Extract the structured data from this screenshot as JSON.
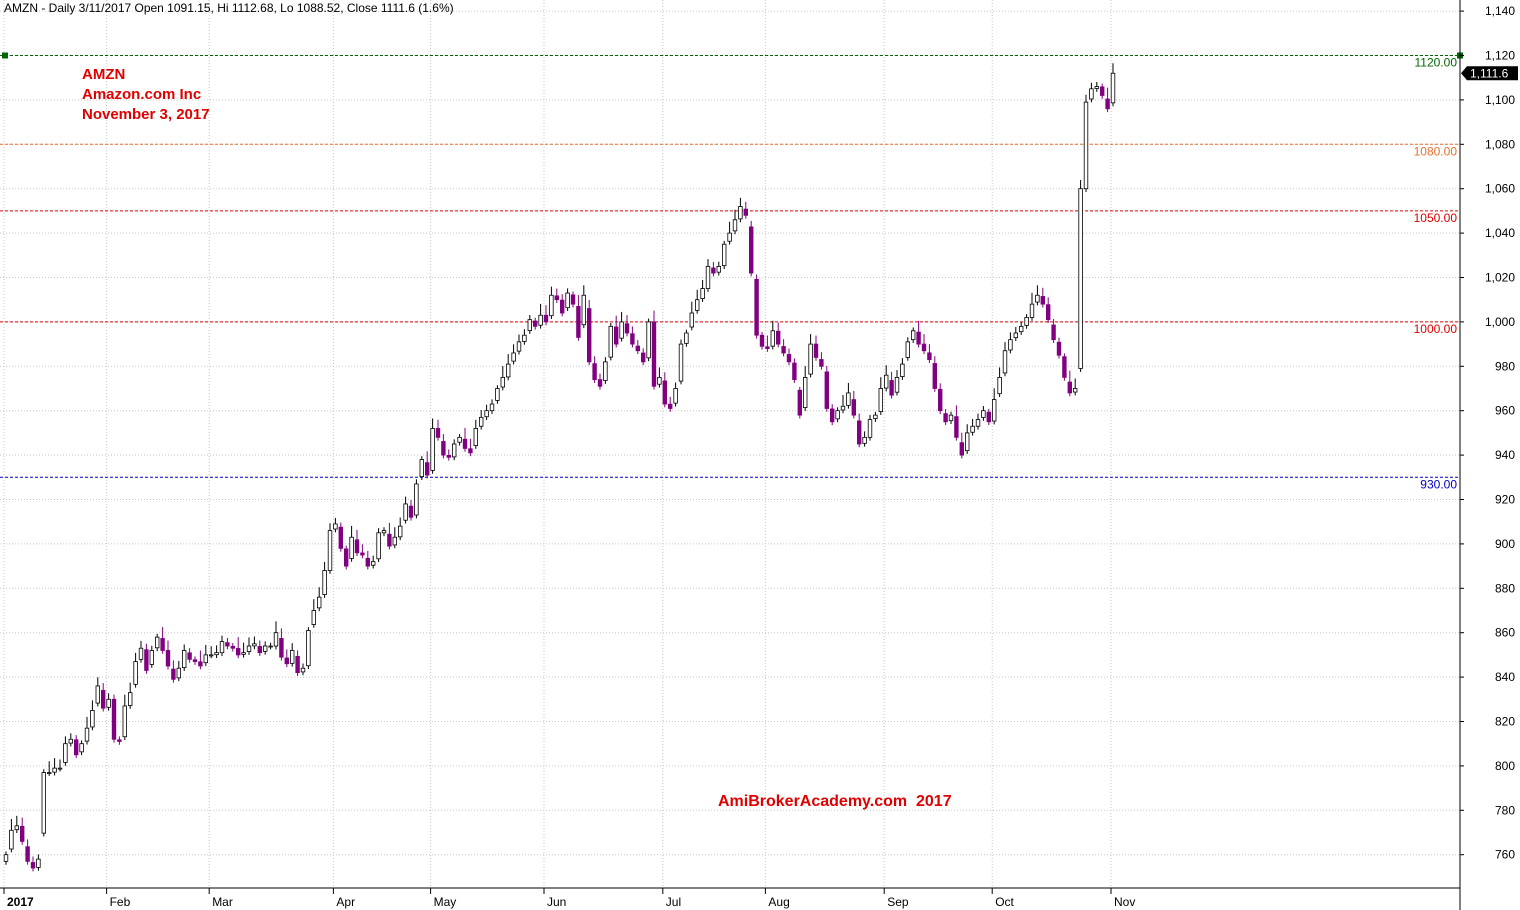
{
  "header": {
    "text": "AMZN - Daily 3/11/2017 Open 1091.15, Hi 1112.68, Lo 1088.52, Close 1111.6 (1.6%)"
  },
  "annotations": {
    "ticker": "AMZN",
    "company": "Amazon.com Inc",
    "date": "November 3, 2017",
    "watermark": "AmiBrokerAcademy.com  2017"
  },
  "colors": {
    "up_candle": "#ffffff",
    "down_candle": "#800080",
    "level_1120": "#006600",
    "level_1080": "#e87030",
    "level_1050": "#e00000",
    "level_1000": "#e00000",
    "level_930": "#0000cc",
    "grid": "#c8c8c8",
    "annotation_text": "#e00000"
  },
  "chart_data": {
    "type": "candlestick",
    "title": "AMZN - Daily 3/11/2017 Open 1091.15, Hi 1112.68, Lo 1088.52, Close 1111.6 (1.6%)",
    "xlabel": "",
    "ylabel": "",
    "grid": true,
    "ylim": [
      745,
      1145
    ],
    "y_ticks": [
      760,
      780,
      800,
      820,
      840,
      860,
      880,
      900,
      920,
      940,
      960,
      980,
      1000,
      1020,
      1040,
      1060,
      1080,
      1100,
      1120,
      1140
    ],
    "y_tick_labels": [
      "760",
      "780",
      "800",
      "820",
      "840",
      "860",
      "880",
      "900",
      "920",
      "940",
      "960",
      "980",
      "1,000",
      "1,020",
      "1,040",
      "1,060",
      "1,080",
      "1,100",
      "1,120",
      "1,140"
    ],
    "x_tick_labels": [
      "2017",
      "Feb",
      "Mar",
      "Apr",
      "May",
      "Jun",
      "Jul",
      "Aug",
      "Sep",
      "Oct",
      "Nov"
    ],
    "month_start_index": [
      0,
      19,
      38,
      61,
      79,
      100,
      122,
      141,
      163,
      183,
      205
    ],
    "last_price_label": "1,111.6",
    "levels": [
      {
        "value": 1120,
        "label": "1120.00",
        "color": "#006600"
      },
      {
        "value": 1080,
        "label": "1080.00",
        "color": "#e87030"
      },
      {
        "value": 1050,
        "label": "1050.00",
        "color": "#e00000"
      },
      {
        "value": 1000,
        "label": "1000.00",
        "color": "#e00000"
      },
      {
        "value": 930,
        "label": "930.00",
        "color": "#0000cc"
      }
    ],
    "closes": [
      760,
      771,
      773,
      766,
      757,
      754,
      758,
      797,
      797,
      799,
      799,
      810,
      812,
      805,
      810,
      817,
      825,
      836,
      826,
      830,
      812,
      811,
      827,
      833,
      847,
      853,
      843,
      852,
      858,
      852,
      845,
      839,
      844,
      852,
      848,
      847,
      845,
      850,
      850,
      851,
      856,
      854,
      853,
      850,
      851,
      854,
      855,
      851,
      854,
      854,
      860,
      849,
      846,
      852,
      842,
      844,
      861,
      870,
      876,
      888,
      906,
      909,
      898,
      890,
      903,
      896,
      895,
      890,
      892,
      905,
      906,
      899,
      903,
      908,
      918,
      912,
      927,
      938,
      931,
      952,
      948,
      940,
      939,
      945,
      948,
      943,
      941,
      952,
      957,
      960,
      963,
      970,
      975,
      981,
      986,
      991,
      994,
      1001,
      998,
      1003,
      1000,
      1012,
      1010,
      1004,
      1013,
      1008,
      993,
      1012,
      982,
      974,
      971,
      982,
      998,
      990,
      1000,
      995,
      990,
      987,
      982,
      1000,
      971,
      975,
      963,
      961,
      970,
      990,
      995,
      1004,
      1010,
      1015,
      1025,
      1022,
      1025,
      1035,
      1040,
      1046,
      1052,
      1048,
      1022,
      994,
      989,
      988,
      996,
      990,
      986,
      982,
      974,
      958,
      975,
      990,
      984,
      980,
      961,
      955,
      960,
      962,
      968,
      958,
      945,
      948,
      956,
      958,
      970,
      976,
      967,
      975,
      981,
      991,
      996,
      990,
      987,
      983,
      970,
      960,
      955,
      958,
      948,
      940,
      950,
      953,
      956,
      960,
      955,
      965,
      975,
      987,
      992,
      995,
      998,
      1002,
      1008,
      1012,
      1008,
      1001,
      992,
      985,
      975,
      968,
      970,
      1060,
      1099,
      1105,
      1106,
      1102,
      1096,
      1112
    ]
  }
}
